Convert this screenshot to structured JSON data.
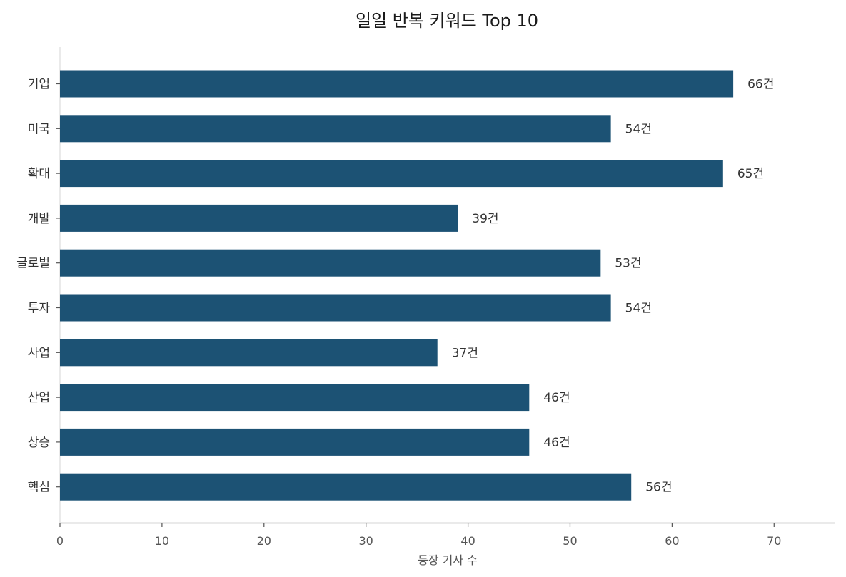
{
  "chart_data": {
    "type": "bar",
    "orientation": "horizontal",
    "title": "일일 반복 키워드 Top 10",
    "xlabel": "등장 기사 수",
    "ylabel": "",
    "categories": [
      "기업",
      "미국",
      "확대",
      "개발",
      "글로벌",
      "투자",
      "사업",
      "산업",
      "상승",
      "핵심"
    ],
    "values": [
      66,
      54,
      65,
      39,
      53,
      54,
      37,
      46,
      46,
      56
    ],
    "value_labels": [
      "66건",
      "54건",
      "65건",
      "39건",
      "53건",
      "54건",
      "37건",
      "46건",
      "46건",
      "56건"
    ],
    "xlim": [
      0,
      76
    ],
    "xticks": [
      0,
      10,
      20,
      30,
      40,
      50,
      60,
      70
    ],
    "xtick_labels": [
      "0",
      "10",
      "20",
      "30",
      "40",
      "50",
      "60",
      "70"
    ],
    "grid": false,
    "bar_color": "#1c5274"
  }
}
